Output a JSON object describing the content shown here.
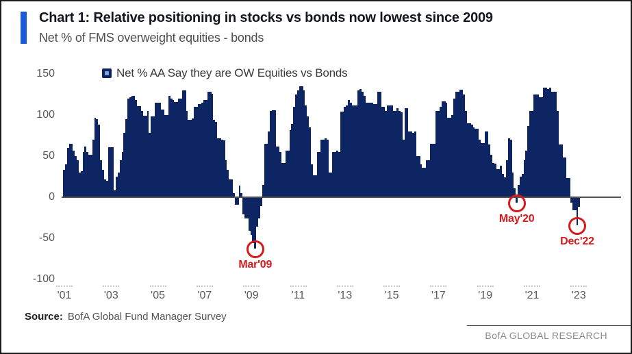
{
  "header": {
    "title": "Chart 1: Relative positioning in stocks vs bonds now lowest since 2009",
    "subtitle": "Net % of FMS overweight equities - bonds"
  },
  "legend": {
    "label": "Net % AA Say they are OW Equities vs Bonds"
  },
  "chart_data": {
    "type": "bar",
    "title": "Chart 1: Relative positioning in stocks vs bonds now lowest since 2009",
    "subtitle": "Net % of FMS overweight equities - bonds",
    "series_name": "Net % AA Say they are OW Equities vs Bonds",
    "xlabel": "",
    "ylabel": "",
    "ylim": [
      -100,
      150
    ],
    "yticks": [
      150,
      100,
      50,
      0,
      -50,
      -100
    ],
    "xticks": [
      "'01",
      "'03",
      "'05",
      "'07",
      "'09",
      "'11",
      "'13",
      "'15",
      "'17",
      "'19",
      "'21",
      "'23"
    ],
    "frequency": "monthly",
    "x_start": "2001-01",
    "legend_position": "top",
    "grid": false,
    "values": [
      33,
      40,
      60,
      65,
      65,
      57,
      50,
      45,
      30,
      32,
      55,
      62,
      55,
      52,
      52,
      70,
      97,
      95,
      88,
      45,
      33,
      22,
      20,
      61,
      61,
      61,
      8,
      25,
      30,
      45,
      55,
      78,
      95,
      120,
      122,
      123,
      123,
      118,
      111,
      111,
      105,
      99,
      99,
      105,
      78,
      98,
      98,
      115,
      115,
      115,
      107,
      107,
      100,
      100,
      123,
      120,
      118,
      116,
      116,
      120,
      120,
      130,
      130,
      105,
      94,
      94,
      96,
      110,
      110,
      113,
      113,
      115,
      118,
      118,
      128,
      128,
      126,
      94,
      92,
      72,
      72,
      70,
      69,
      45,
      33,
      22,
      22,
      5,
      -8,
      -8,
      14,
      5,
      -20,
      -25,
      -25,
      -40,
      -45,
      -55,
      -62,
      -35,
      -25,
      -10,
      15,
      65,
      65,
      80,
      105,
      106,
      106,
      62,
      62,
      55,
      42,
      42,
      57,
      57,
      82,
      89,
      110,
      125,
      130,
      135,
      135,
      130,
      112,
      98,
      85,
      40,
      27,
      27,
      55,
      55,
      70,
      70,
      72,
      70,
      30,
      30,
      55,
      55,
      57,
      55,
      104,
      104,
      110,
      112,
      118,
      115,
      112,
      112,
      112,
      130,
      132,
      128,
      123,
      115,
      115,
      115,
      115,
      113,
      113,
      128,
      128,
      110,
      110,
      105,
      112,
      112,
      112,
      105,
      105,
      108,
      105,
      103,
      70,
      108,
      108,
      80,
      80,
      78,
      80,
      50,
      50,
      40,
      36,
      36,
      45,
      45,
      65,
      65,
      65,
      105,
      105,
      110,
      117,
      117,
      115,
      97,
      97,
      100,
      120,
      128,
      128,
      131,
      131,
      125,
      105,
      90,
      90,
      88,
      85,
      83,
      83,
      70,
      66,
      66,
      80,
      80,
      64,
      52,
      42,
      41,
      34,
      34,
      38,
      28,
      24,
      45,
      72,
      70,
      30,
      11,
      -6,
      15,
      25,
      28,
      45,
      57,
      87,
      105,
      105,
      125,
      125,
      125,
      122,
      122,
      133,
      133,
      132,
      133,
      128,
      128,
      128,
      105,
      64,
      64,
      48,
      48,
      23,
      23,
      -6,
      -15,
      -15,
      -33,
      -11
    ],
    "annotations": [
      {
        "label": "Mar'09",
        "month": "2009-03",
        "value": -62
      },
      {
        "label": "May'20",
        "month": "2020-05",
        "value": -6
      },
      {
        "label": "Dec'22",
        "month": "2022-12",
        "value": -33
      }
    ]
  },
  "source": {
    "label": "Source:",
    "text": "BofA Global Fund Manager Survey"
  },
  "footer": {
    "brand": "BofA GLOBAL RESEARCH"
  },
  "colors": {
    "bar": "#0d2663",
    "accent_bar": "#1a5bd7",
    "annotation_red": "#d7191c",
    "zero_line": "#515151",
    "axis_text": "#595959"
  }
}
